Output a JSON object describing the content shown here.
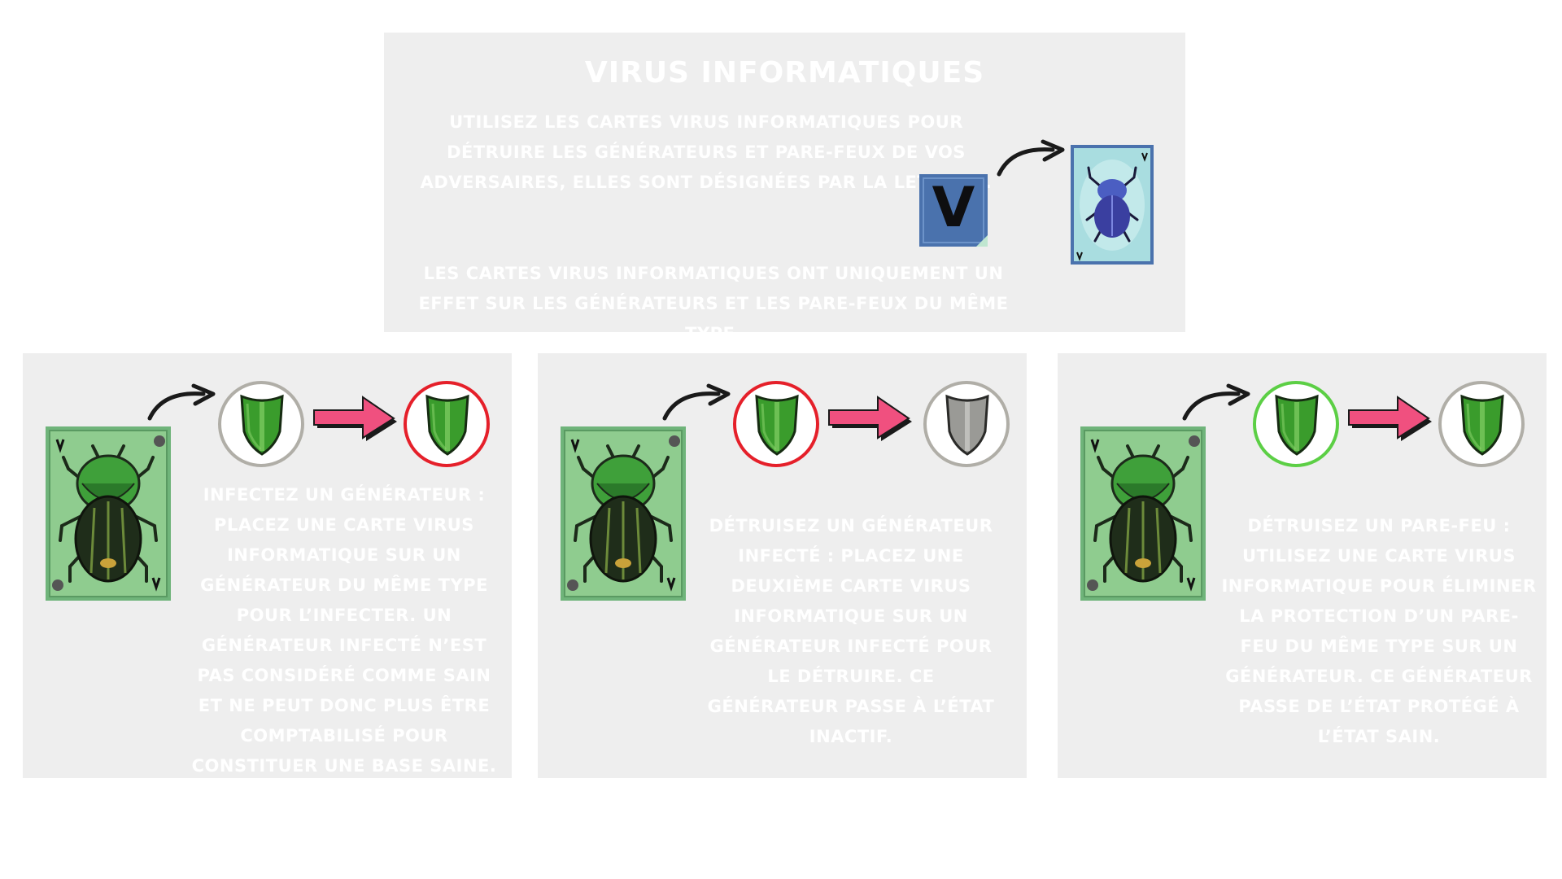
{
  "colors": {
    "panel": "#eeeeee",
    "text": "#ffffff",
    "shield_green": "#3a9c2c",
    "shield_gray": "#9a9a96",
    "ring_neutral": "#b0aea7",
    "ring_red": "#e5202a",
    "ring_green": "#5ccf45",
    "pink_arrow": "#f0507f",
    "letter_card_blue": "#4a72ad"
  },
  "header": {
    "title": "Virus informatiques",
    "intro": "Utilisez les cartes virus informatiques pour détruire les générateurs et pare-feux de vos adversaires, elles sont désignées par la lettre V.",
    "note": "Les cartes virus informatiques ont uniquement un effet sur les générateurs et les pare-feux du même type.",
    "letter": "V"
  },
  "steps": [
    {
      "text": "Infectez un générateur : placez une carte virus informatique sur un générateur du même type pour l’infecter. Un générateur infecté n’est pas considéré comme sain et ne peut donc plus être comptabilisé pour constituer une base saine.",
      "from": {
        "shield": "green",
        "ring": "neutral"
      },
      "to": {
        "shield": "green",
        "ring": "red"
      }
    },
    {
      "text": "Détruisez un générateur infecté : placez une deuxième carte virus informatique sur un générateur infecté pour le détruire. Ce générateur passe à l’état inactif.",
      "from": {
        "shield": "green",
        "ring": "red"
      },
      "to": {
        "shield": "gray",
        "ring": "neutral"
      }
    },
    {
      "text": "Détruisez un pare-feu : utilisez une carte virus informatique pour éliminer la protection d’un pare-feu du même type sur un générateur. Ce générateur passe de l’état protégé à l’état sain.",
      "from": {
        "shield": "green",
        "ring": "green"
      },
      "to": {
        "shield": "green",
        "ring": "neutral"
      }
    }
  ]
}
